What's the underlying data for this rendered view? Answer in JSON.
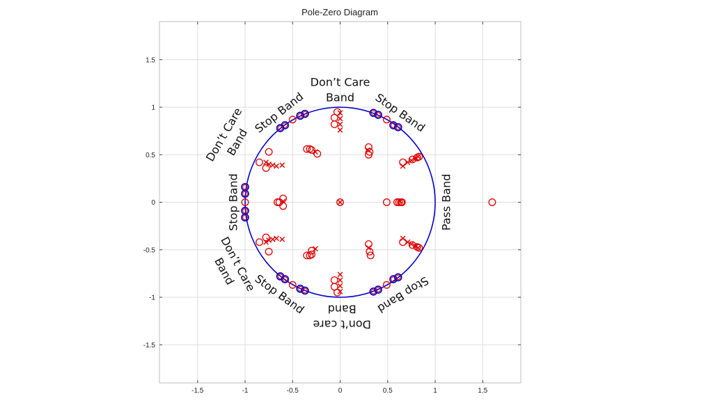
{
  "chart_data": {
    "type": "scatter",
    "title": "Pole-Zero Diagram",
    "xlabel": "",
    "ylabel": "",
    "xlim": [
      -1.9,
      1.9
    ],
    "ylim": [
      -1.9,
      1.9
    ],
    "grid": true,
    "xticks": [
      -1.5,
      -1,
      -0.5,
      0,
      0.5,
      1,
      1.5
    ],
    "yticks": [
      -1.5,
      -1,
      -0.5,
      0,
      0.5,
      1,
      1.5
    ],
    "unit_circle": {
      "radius": 1,
      "color": "#0000cc"
    },
    "colors": {
      "zeros": "#e00000",
      "poles": "#e00000",
      "unit_circle_zeros": "#0000cc",
      "grid": "#dddddd"
    },
    "unit_circle_zeros": [
      [
        -0.37,
        0.93
      ],
      [
        -0.42,
        0.91
      ],
      [
        -0.58,
        0.81
      ],
      [
        -0.63,
        0.78
      ],
      [
        -1.0,
        0.16
      ],
      [
        -1.0,
        0.09
      ],
      [
        -1.0,
        -0.09
      ],
      [
        -1.0,
        -0.16
      ],
      [
        -0.63,
        -0.78
      ],
      [
        -0.58,
        -0.81
      ],
      [
        -0.42,
        -0.91
      ],
      [
        -0.37,
        -0.93
      ],
      [
        0.35,
        0.94
      ],
      [
        0.4,
        0.92
      ],
      [
        0.56,
        0.81
      ],
      [
        0.61,
        0.79
      ],
      [
        0.35,
        -0.94
      ],
      [
        0.4,
        -0.92
      ],
      [
        0.56,
        -0.81
      ],
      [
        0.61,
        -0.79
      ]
    ],
    "zeros": [
      [
        1.6,
        0
      ],
      [
        0.0,
        0.0
      ],
      [
        -0.5,
        0.87
      ],
      [
        -1.0,
        0
      ],
      [
        0.49,
        0.87
      ],
      [
        0.49,
        -0.87
      ],
      [
        -0.5,
        -0.87
      ],
      [
        -0.03,
        0.95
      ],
      [
        -0.06,
        0.89
      ],
      [
        -0.06,
        0.82
      ],
      [
        -0.03,
        -0.95
      ],
      [
        -0.06,
        -0.89
      ],
      [
        -0.06,
        -0.82
      ],
      [
        -0.35,
        0.56
      ],
      [
        -0.32,
        0.56
      ],
      [
        -0.3,
        0.55
      ],
      [
        -0.24,
        0.51
      ],
      [
        -0.35,
        -0.56
      ],
      [
        -0.32,
        -0.56
      ],
      [
        -0.3,
        -0.55
      ],
      [
        -0.3,
        -0.51
      ],
      [
        0.3,
        0.58
      ],
      [
        0.31,
        0.53
      ],
      [
        0.3,
        0.5
      ],
      [
        0.3,
        -0.44
      ],
      [
        0.31,
        -0.52
      ],
      [
        0.32,
        -0.56
      ],
      [
        -0.75,
        0.53
      ],
      [
        -0.85,
        0.42
      ],
      [
        -0.78,
        0.36
      ],
      [
        -0.75,
        -0.52
      ],
      [
        -0.85,
        -0.42
      ],
      [
        -0.78,
        -0.37
      ],
      [
        0.66,
        0.42
      ],
      [
        0.76,
        0.45
      ],
      [
        0.81,
        0.47
      ],
      [
        0.83,
        0.48
      ],
      [
        0.66,
        -0.42
      ],
      [
        0.76,
        -0.45
      ],
      [
        0.81,
        -0.47
      ],
      [
        0.83,
        -0.48
      ],
      [
        -0.66,
        0
      ],
      [
        -0.64,
        0
      ],
      [
        -0.6,
        0.04
      ],
      [
        -0.6,
        -0.04
      ],
      [
        0.49,
        0
      ],
      [
        0.6,
        0
      ],
      [
        0.62,
        0
      ],
      [
        0.64,
        0
      ],
      [
        0.65,
        0
      ]
    ],
    "poles": [
      [
        0.0,
        0.0
      ],
      [
        0.0,
        0.94
      ],
      [
        0.0,
        0.88
      ],
      [
        0.0,
        0.82
      ],
      [
        0.0,
        0.76
      ],
      [
        0.0,
        -0.94
      ],
      [
        0.0,
        -0.88
      ],
      [
        0.0,
        -0.82
      ],
      [
        0.0,
        -0.76
      ],
      [
        -0.26,
        0.53
      ],
      [
        -0.26,
        -0.49
      ],
      [
        0.29,
        0.55
      ],
      [
        0.3,
        -0.48
      ],
      [
        -0.78,
        0.42
      ],
      [
        -0.75,
        0.4
      ],
      [
        -0.71,
        0.39
      ],
      [
        -0.67,
        0.38
      ],
      [
        -0.61,
        0.39
      ],
      [
        -0.78,
        -0.42
      ],
      [
        -0.75,
        -0.4
      ],
      [
        -0.71,
        -0.39
      ],
      [
        -0.67,
        -0.38
      ],
      [
        -0.61,
        -0.39
      ],
      [
        0.66,
        0.38
      ],
      [
        0.71,
        0.42
      ],
      [
        0.75,
        0.44
      ],
      [
        0.79,
        0.46
      ],
      [
        0.82,
        0.48
      ],
      [
        0.66,
        -0.38
      ],
      [
        0.71,
        -0.42
      ],
      [
        0.75,
        -0.44
      ],
      [
        0.79,
        -0.46
      ],
      [
        0.82,
        -0.48
      ],
      [
        -0.6,
        0.01
      ],
      [
        0.63,
        0.01
      ]
    ],
    "annotations": [
      {
        "lines": [
          "Don’t Care",
          "Band"
        ],
        "x": 0,
        "y": 1.18,
        "rotate": 0
      },
      {
        "lines": [
          "Stop Band"
        ],
        "x": -0.64,
        "y": 0.94,
        "rotate": -38
      },
      {
        "lines": [
          "Stop Band"
        ],
        "x": 0.63,
        "y": 0.94,
        "rotate": 35
      },
      {
        "lines": [
          "Don’t Care",
          "Band"
        ],
        "x": -1.15,
        "y": 0.67,
        "rotate": -60
      },
      {
        "lines": [
          "Stop Band"
        ],
        "x": -1.12,
        "y": 0,
        "rotate": -90
      },
      {
        "lines": [
          "Pass Band"
        ],
        "x": 1.12,
        "y": 0,
        "rotate": -90
      },
      {
        "lines": [
          "Don’t Care",
          "Band"
        ],
        "x": -1.15,
        "y": -0.69,
        "rotate": 62
      },
      {
        "lines": [
          "Stop Band"
        ],
        "x": -0.64,
        "y": -0.97,
        "rotate": 36
      },
      {
        "lines": [
          "Stop Band"
        ],
        "x": 0.66,
        "y": -0.97,
        "rotate": 148
      },
      {
        "lines": [
          "Don’t care",
          "Band"
        ],
        "x": 0.02,
        "y": -1.2,
        "rotate": 180
      }
    ]
  }
}
